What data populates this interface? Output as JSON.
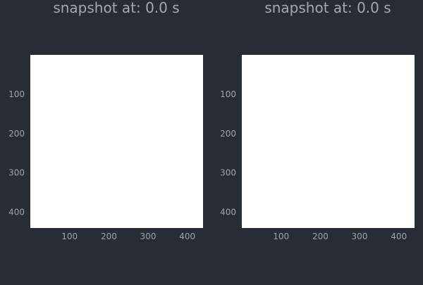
{
  "theme": {
    "background": "#282c34",
    "panel_color": "#ffffff",
    "text_color": "#a4a9b1"
  },
  "chart_data": [
    {
      "type": "heatmap",
      "title": "snapshot at: 0.0 s",
      "xlabel": "",
      "ylabel": "",
      "x_ticks": [
        100,
        200,
        300,
        400
      ],
      "y_ticks": [
        100,
        200,
        300,
        400
      ],
      "xlim": [
        0,
        440
      ],
      "ylim": [
        440,
        0
      ],
      "grid": false,
      "values": []
    },
    {
      "type": "heatmap",
      "title": "snapshot at: 0.0 s",
      "xlabel": "",
      "ylabel": "",
      "x_ticks": [
        100,
        200,
        300,
        400
      ],
      "y_ticks": [
        100,
        200,
        300,
        400
      ],
      "xlim": [
        0,
        440
      ],
      "ylim": [
        440,
        0
      ],
      "grid": false,
      "values": []
    }
  ]
}
